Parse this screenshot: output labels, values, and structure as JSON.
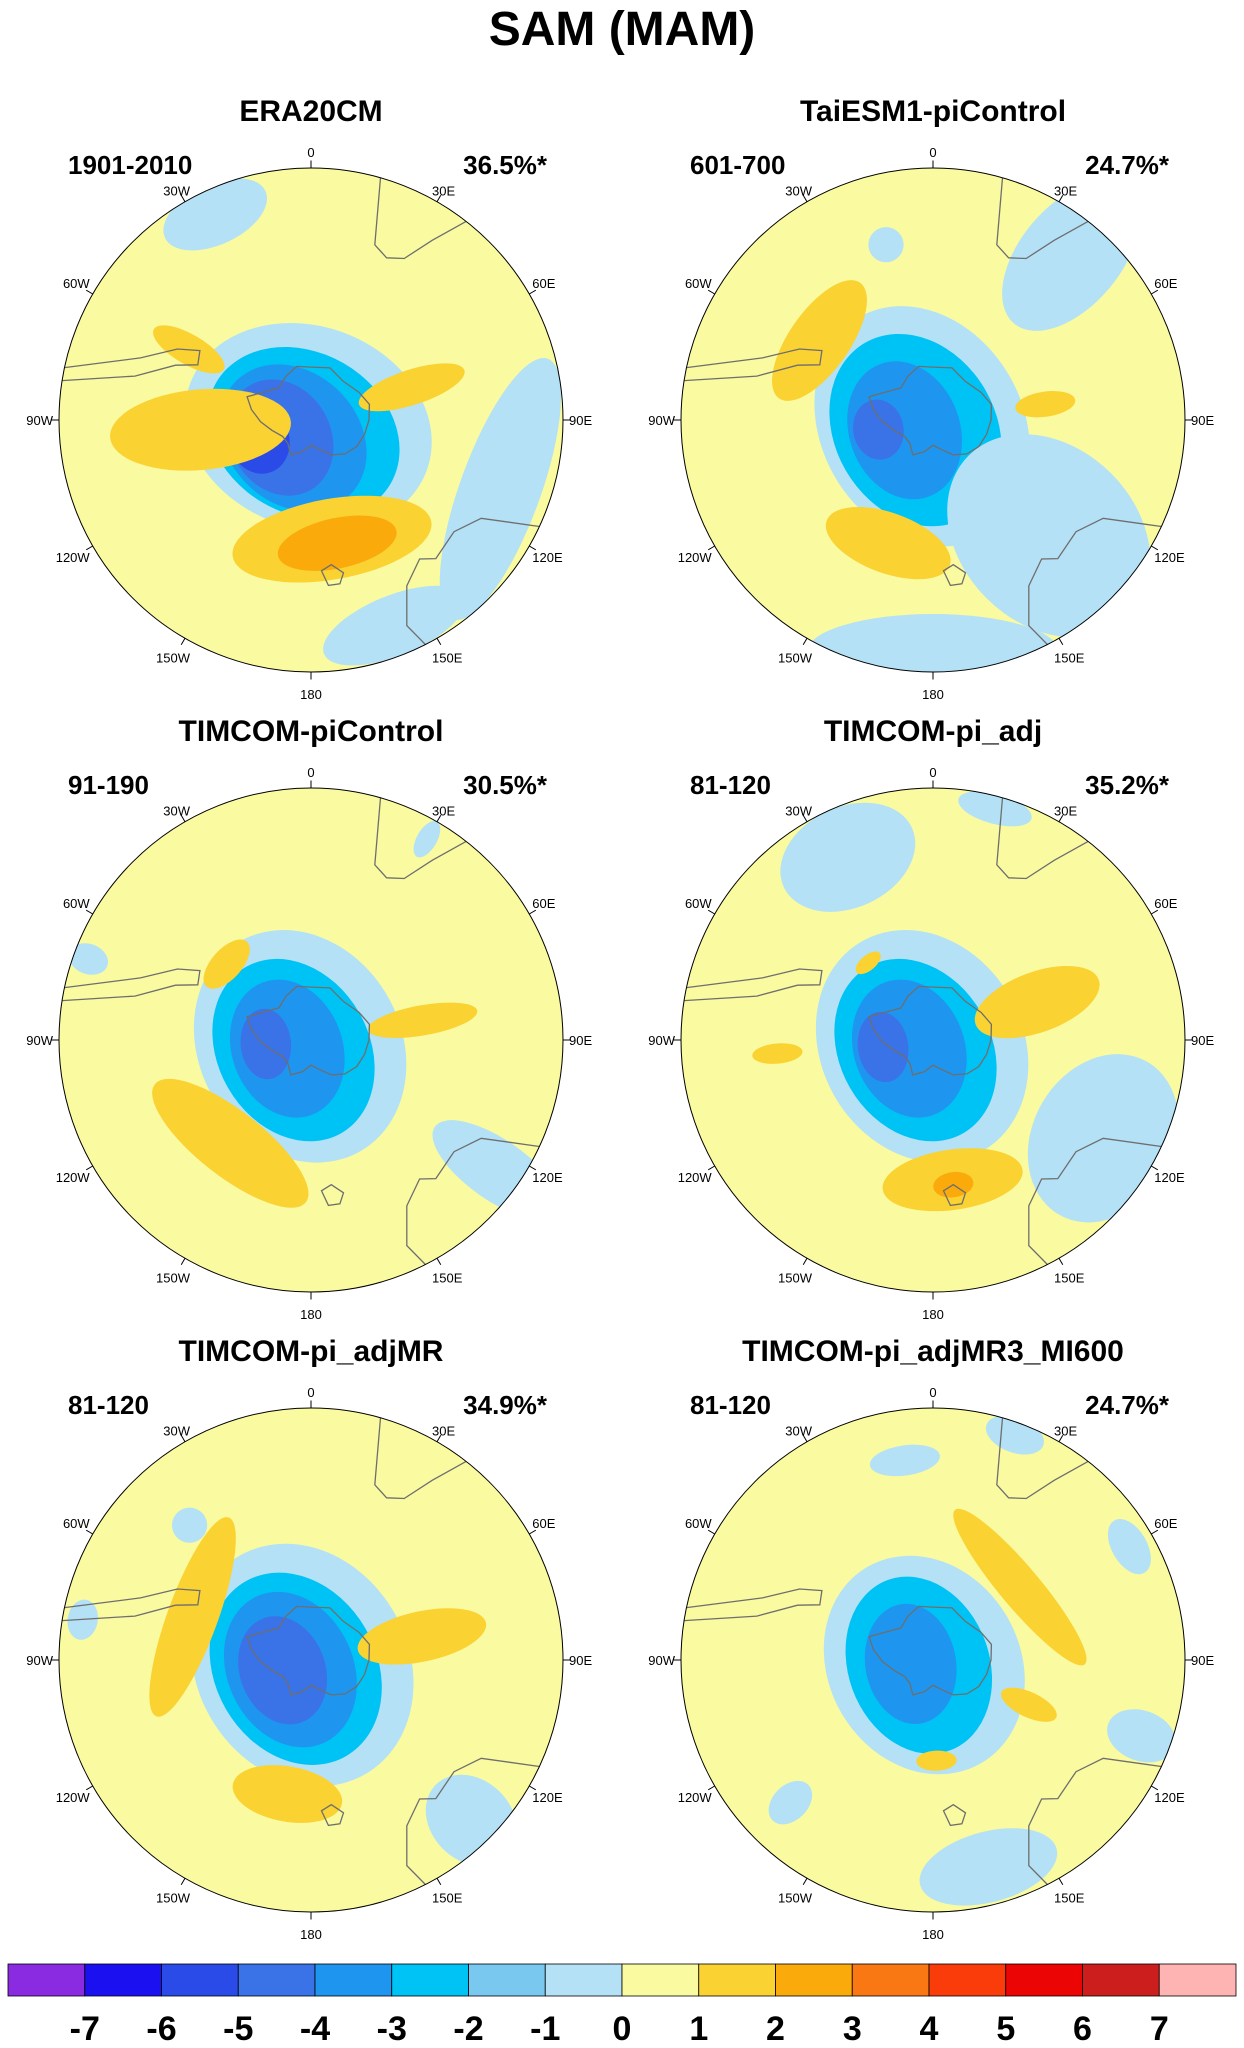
{
  "title": "SAM (MAM)",
  "panels": [
    {
      "id": "era20cm",
      "title": "ERA20CM",
      "period": "1901-2010",
      "variance": "36.5%*",
      "features": [
        {
          "lon": 200,
          "r": 0.03,
          "rx": 0.5,
          "ry": 0.4,
          "level": -1
        },
        {
          "lon": 210,
          "r": 0.06,
          "rx": 0.4,
          "ry": 0.32,
          "level": -2
        },
        {
          "lon": 225,
          "r": 0.1,
          "rx": 0.32,
          "ry": 0.26,
          "level": -3
        },
        {
          "lon": 240,
          "r": 0.14,
          "rx": 0.24,
          "ry": 0.2,
          "level": -4
        },
        {
          "lon": 250,
          "r": 0.22,
          "rx": 0.14,
          "ry": 0.12,
          "level": -5
        },
        {
          "lon": 258,
          "r": 0.26,
          "rx": 0.06,
          "ry": 0.05,
          "level": -6
        },
        {
          "lon": 170,
          "r": 0.48,
          "rx": 0.4,
          "ry": 0.16,
          "level": 1
        },
        {
          "lon": 168,
          "r": 0.5,
          "rx": 0.24,
          "ry": 0.1,
          "level": 2
        },
        {
          "lon": 265,
          "r": 0.44,
          "rx": 0.16,
          "ry": 0.36,
          "level": 1
        },
        {
          "lon": 300,
          "r": 0.56,
          "rx": 0.06,
          "ry": 0.16,
          "level": 1
        },
        {
          "lon": 72,
          "r": 0.42,
          "rx": 0.07,
          "ry": 0.22,
          "level": 1
        },
        {
          "lon": 335,
          "r": 0.9,
          "rx": 0.22,
          "ry": 0.12,
          "level": -1
        },
        {
          "lon": 110,
          "r": 0.8,
          "rx": 0.55,
          "ry": 0.16,
          "level": -1
        },
        {
          "lon": 158,
          "r": 0.88,
          "rx": 0.3,
          "ry": 0.12,
          "level": -1
        }
      ]
    },
    {
      "id": "taiesm1",
      "title": "TaiESM1-piControl",
      "period": "601-700",
      "variance": "24.7%*",
      "features": [
        {
          "lon": 240,
          "r": 0.05,
          "rx": 0.5,
          "ry": 0.4,
          "level": -1
        },
        {
          "lon": 240,
          "r": 0.08,
          "rx": 0.4,
          "ry": 0.32,
          "level": -2
        },
        {
          "lon": 250,
          "r": 0.12,
          "rx": 0.28,
          "ry": 0.22,
          "level": -3
        },
        {
          "lon": 260,
          "r": 0.22,
          "rx": 0.12,
          "ry": 0.1,
          "level": -4
        },
        {
          "lon": 305,
          "r": 0.55,
          "rx": 0.28,
          "ry": 0.12,
          "level": 1
        },
        {
          "lon": 200,
          "r": 0.52,
          "rx": 0.26,
          "ry": 0.12,
          "level": 1
        },
        {
          "lon": 82,
          "r": 0.45,
          "rx": 0.05,
          "ry": 0.12,
          "level": 1
        },
        {
          "lon": 40,
          "r": 0.85,
          "rx": 0.2,
          "ry": 0.35,
          "level": -1
        },
        {
          "lon": 135,
          "r": 0.65,
          "rx": 0.35,
          "ry": 0.45,
          "level": -1
        },
        {
          "lon": 180,
          "r": 0.92,
          "rx": 0.5,
          "ry": 0.15,
          "level": -1
        },
        {
          "lon": 345,
          "r": 0.72,
          "rx": 0.07,
          "ry": 0.07,
          "level": -1
        }
      ]
    },
    {
      "id": "timcom-picontrol",
      "title": "TIMCOM-piControl",
      "period": "91-190",
      "variance": "30.5%*",
      "features": [
        {
          "lon": 240,
          "r": 0.05,
          "rx": 0.48,
          "ry": 0.4,
          "level": -1
        },
        {
          "lon": 240,
          "r": 0.08,
          "rx": 0.38,
          "ry": 0.3,
          "level": -2
        },
        {
          "lon": 250,
          "r": 0.1,
          "rx": 0.28,
          "ry": 0.22,
          "level": -3
        },
        {
          "lon": 265,
          "r": 0.18,
          "rx": 0.14,
          "ry": 0.1,
          "level": -4
        },
        {
          "lon": 218,
          "r": 0.52,
          "rx": 0.38,
          "ry": 0.13,
          "level": 1
        },
        {
          "lon": 312,
          "r": 0.45,
          "rx": 0.12,
          "ry": 0.06,
          "level": 1
        },
        {
          "lon": 80,
          "r": 0.45,
          "rx": 0.06,
          "ry": 0.22,
          "level": 1
        },
        {
          "lon": 290,
          "r": 0.94,
          "rx": 0.06,
          "ry": 0.08,
          "level": -1
        },
        {
          "lon": 30,
          "r": 0.92,
          "rx": 0.04,
          "ry": 0.08,
          "level": -1
        },
        {
          "lon": 125,
          "r": 0.9,
          "rx": 0.12,
          "ry": 0.3,
          "level": -1
        }
      ]
    },
    {
      "id": "timcom-pi-adj",
      "title": "TIMCOM-pi_adj",
      "period": "81-120",
      "variance": "35.2%*",
      "features": [
        {
          "lon": 240,
          "r": 0.05,
          "rx": 0.48,
          "ry": 0.4,
          "level": -1
        },
        {
          "lon": 240,
          "r": 0.08,
          "rx": 0.38,
          "ry": 0.3,
          "level": -2
        },
        {
          "lon": 250,
          "r": 0.1,
          "rx": 0.28,
          "ry": 0.22,
          "level": -3
        },
        {
          "lon": 262,
          "r": 0.2,
          "rx": 0.14,
          "ry": 0.1,
          "level": -4
        },
        {
          "lon": 172,
          "r": 0.56,
          "rx": 0.28,
          "ry": 0.12,
          "level": 1
        },
        {
          "lon": 172,
          "r": 0.58,
          "rx": 0.08,
          "ry": 0.05,
          "level": 2
        },
        {
          "lon": 70,
          "r": 0.44,
          "rx": 0.12,
          "ry": 0.26,
          "level": 1
        },
        {
          "lon": 265,
          "r": 0.62,
          "rx": 0.04,
          "ry": 0.1,
          "level": 1
        },
        {
          "lon": 320,
          "r": 0.4,
          "rx": 0.06,
          "ry": 0.03,
          "level": 1
        },
        {
          "lon": 335,
          "r": 0.8,
          "rx": 0.28,
          "ry": 0.2,
          "level": -1
        },
        {
          "lon": 120,
          "r": 0.78,
          "rx": 0.35,
          "ry": 0.28,
          "level": -1
        },
        {
          "lon": 15,
          "r": 0.95,
          "rx": 0.15,
          "ry": 0.06,
          "level": -1
        }
      ]
    },
    {
      "id": "timcom-pi-adjmr",
      "title": "TIMCOM-pi_adjMR",
      "period": "81-120",
      "variance": "34.9%*",
      "features": [
        {
          "lon": 240,
          "r": 0.04,
          "rx": 0.5,
          "ry": 0.42,
          "level": -1
        },
        {
          "lon": 240,
          "r": 0.07,
          "rx": 0.4,
          "ry": 0.32,
          "level": -2
        },
        {
          "lon": 245,
          "r": 0.09,
          "rx": 0.32,
          "ry": 0.25,
          "level": -3
        },
        {
          "lon": 250,
          "r": 0.12,
          "rx": 0.22,
          "ry": 0.17,
          "level": -4
        },
        {
          "lon": 290,
          "r": 0.5,
          "rx": 0.42,
          "ry": 0.1,
          "level": 1
        },
        {
          "lon": 190,
          "r": 0.54,
          "rx": 0.22,
          "ry": 0.11,
          "level": 1
        },
        {
          "lon": 78,
          "r": 0.45,
          "rx": 0.1,
          "ry": 0.26,
          "level": 1
        },
        {
          "lon": 318,
          "r": 0.72,
          "rx": 0.07,
          "ry": 0.07,
          "level": -1
        },
        {
          "lon": 280,
          "r": 0.92,
          "rx": 0.08,
          "ry": 0.06,
          "level": -1
        },
        {
          "lon": 135,
          "r": 0.9,
          "rx": 0.16,
          "ry": 0.2,
          "level": -1
        }
      ]
    },
    {
      "id": "timcom-pi-adjmr3-mi600",
      "title": "TIMCOM-pi_adjMR3_MI600",
      "period": "81-120",
      "variance": "24.7%*",
      "features": [
        {
          "lon": 240,
          "r": 0.04,
          "rx": 0.45,
          "ry": 0.38,
          "level": -1
        },
        {
          "lon": 250,
          "r": 0.06,
          "rx": 0.36,
          "ry": 0.28,
          "level": -2
        },
        {
          "lon": 260,
          "r": 0.09,
          "rx": 0.24,
          "ry": 0.18,
          "level": -3
        },
        {
          "lon": 50,
          "r": 0.45,
          "rx": 0.4,
          "ry": 0.08,
          "level": 1
        },
        {
          "lon": 115,
          "r": 0.42,
          "rx": 0.05,
          "ry": 0.12,
          "level": 1
        },
        {
          "lon": 178,
          "r": 0.4,
          "rx": 0.08,
          "ry": 0.04,
          "level": 1
        },
        {
          "lon": 352,
          "r": 0.8,
          "rx": 0.14,
          "ry": 0.06,
          "level": -1
        },
        {
          "lon": 20,
          "r": 0.95,
          "rx": 0.12,
          "ry": 0.07,
          "level": -1
        },
        {
          "lon": 60,
          "r": 0.9,
          "rx": 0.12,
          "ry": 0.07,
          "level": -1
        },
        {
          "lon": 110,
          "r": 0.88,
          "rx": 0.1,
          "ry": 0.14,
          "level": -1
        },
        {
          "lon": 165,
          "r": 0.85,
          "rx": 0.28,
          "ry": 0.14,
          "level": -1
        },
        {
          "lon": 225,
          "r": 0.8,
          "rx": 0.07,
          "ry": 0.1,
          "level": -1
        }
      ]
    }
  ],
  "longitude_labels": [
    {
      "lon": 0,
      "text": "0"
    },
    {
      "lon": 30,
      "text": "30E"
    },
    {
      "lon": 60,
      "text": "60E"
    },
    {
      "lon": 90,
      "text": "90E"
    },
    {
      "lon": 120,
      "text": "120E"
    },
    {
      "lon": 150,
      "text": "150E"
    },
    {
      "lon": 180,
      "text": "180"
    },
    {
      "lon": 210,
      "text": "150W"
    },
    {
      "lon": 240,
      "text": "120W"
    },
    {
      "lon": 270,
      "text": "90W"
    },
    {
      "lon": 300,
      "text": "60W"
    },
    {
      "lon": 330,
      "text": "30W"
    }
  ],
  "colorbar": {
    "colors": [
      "#8a2be2",
      "#1a10f0",
      "#2b4be8",
      "#3a72e8",
      "#1e96f0",
      "#00c3f5",
      "#78c8f0",
      "#b4e1f5",
      "#fafaa0",
      "#fad232",
      "#faaa0a",
      "#fa7814",
      "#fa3c0a",
      "#eb0505",
      "#cd1e1e",
      "#ffb4b4"
    ],
    "labels": [
      "-7",
      "-6",
      "-5",
      "-4",
      "-3",
      "-2",
      "-1",
      "0",
      "1",
      "2",
      "3",
      "4",
      "5",
      "6",
      "7"
    ]
  },
  "level_colors": {
    "-6": "#2020d8",
    "-5": "#2b4be8",
    "-4": "#3a72e8",
    "-3": "#1e96f0",
    "-2": "#00c3f5",
    "-1": "#b4e1f5",
    "0": "#fafaa0",
    "1": "#fad232",
    "2": "#faaa0a"
  },
  "coastline_color": "#6e6e6e"
}
